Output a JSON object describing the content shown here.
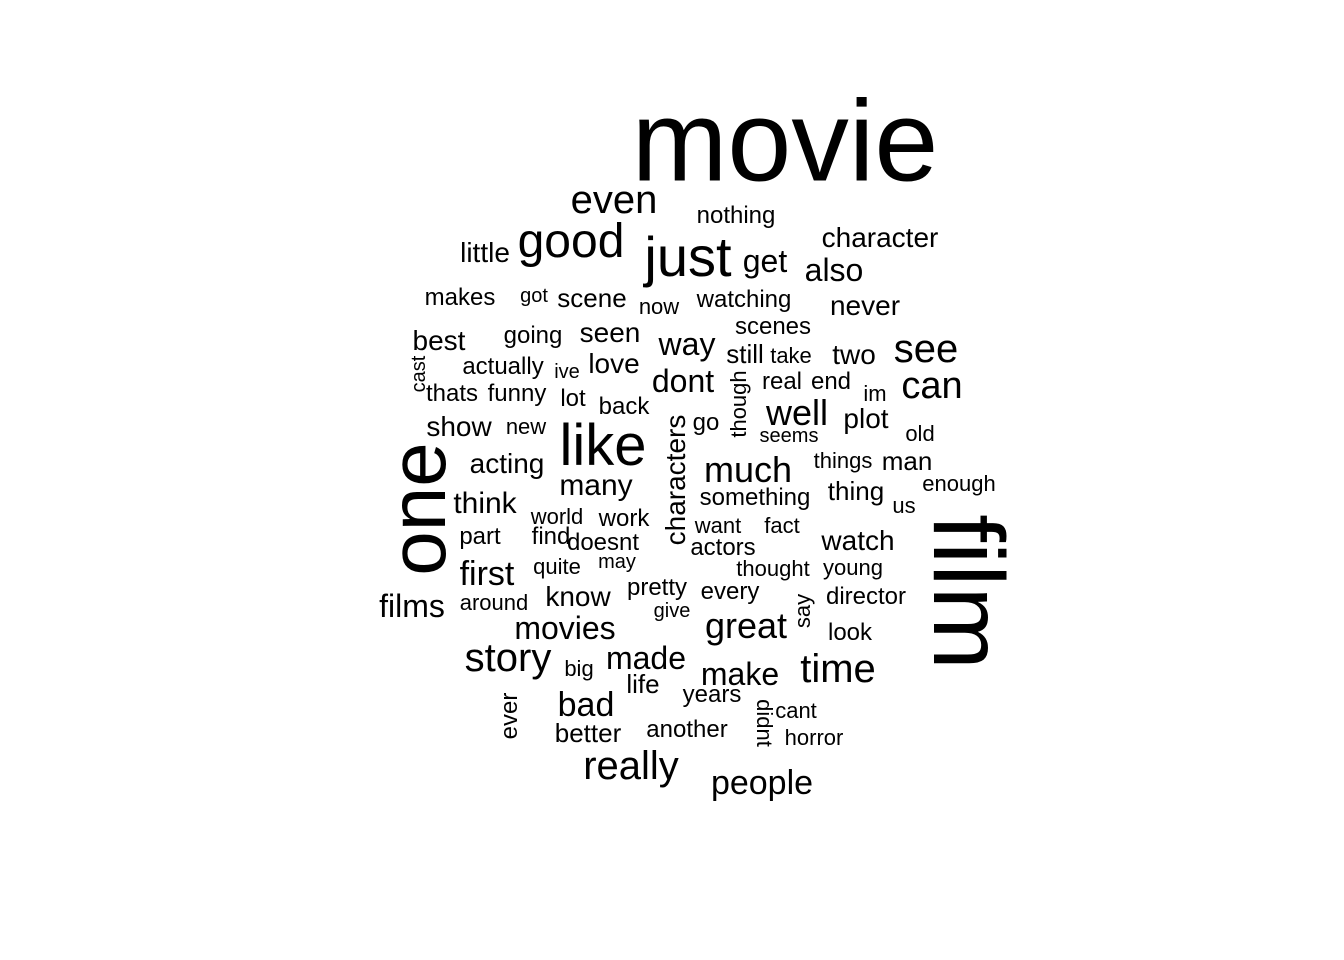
{
  "words": [
    {
      "text": "movie",
      "rot": 0
    },
    {
      "text": "film",
      "rot": 90
    },
    {
      "text": "one",
      "rot": -90
    },
    {
      "text": "like",
      "rot": 0
    },
    {
      "text": "just",
      "rot": 0
    },
    {
      "text": "good",
      "rot": 0
    },
    {
      "text": "even",
      "rot": 0
    },
    {
      "text": "really",
      "rot": 0
    },
    {
      "text": "story",
      "rot": 0
    },
    {
      "text": "time",
      "rot": 0
    },
    {
      "text": "see",
      "rot": 0
    },
    {
      "text": "can",
      "rot": 0
    },
    {
      "text": "much",
      "rot": 0
    },
    {
      "text": "well",
      "rot": 0
    },
    {
      "text": "get",
      "rot": 0
    },
    {
      "text": "also",
      "rot": 0
    },
    {
      "text": "great",
      "rot": 0
    },
    {
      "text": "characters",
      "rot": -90
    },
    {
      "text": "made",
      "rot": 0
    },
    {
      "text": "make",
      "rot": 0
    },
    {
      "text": "bad",
      "rot": 0
    },
    {
      "text": "people",
      "rot": 0
    },
    {
      "text": "movies",
      "rot": 0
    },
    {
      "text": "first",
      "rot": 0
    },
    {
      "text": "dont",
      "rot": 0
    },
    {
      "text": "way",
      "rot": 0
    },
    {
      "text": "films",
      "rot": 0
    },
    {
      "text": "think",
      "rot": 0
    },
    {
      "text": "many",
      "rot": 0
    },
    {
      "text": "seen",
      "rot": 0
    },
    {
      "text": "never",
      "rot": 0
    },
    {
      "text": "character",
      "rot": 0
    },
    {
      "text": "watch",
      "rot": 0
    },
    {
      "text": "acting",
      "rot": 0
    },
    {
      "text": "plot",
      "rot": 0
    },
    {
      "text": "love",
      "rot": 0
    },
    {
      "text": "know",
      "rot": 0
    },
    {
      "text": "two",
      "rot": 0
    },
    {
      "text": "best",
      "rot": 0
    },
    {
      "text": "show",
      "rot": 0
    },
    {
      "text": "little",
      "rot": 0
    },
    {
      "text": "scene",
      "rot": 0
    },
    {
      "text": "watching",
      "rot": 0
    },
    {
      "text": "scenes",
      "rot": 0
    },
    {
      "text": "still",
      "rot": 0
    },
    {
      "text": "something",
      "rot": 0
    },
    {
      "text": "nothing",
      "rot": 0
    },
    {
      "text": "makes",
      "rot": 0
    },
    {
      "text": "going",
      "rot": 0
    },
    {
      "text": "actually",
      "rot": 0
    },
    {
      "text": "funny",
      "rot": 0
    },
    {
      "text": "better",
      "rot": 0
    },
    {
      "text": "another",
      "rot": 0
    },
    {
      "text": "life",
      "rot": 0
    },
    {
      "text": "years",
      "rot": 0
    },
    {
      "text": "end",
      "rot": 0
    },
    {
      "text": "real",
      "rot": 0
    },
    {
      "text": "man",
      "rot": 0
    },
    {
      "text": "thing",
      "rot": 0
    },
    {
      "text": "doesnt",
      "rot": 0
    },
    {
      "text": "work",
      "rot": 0
    },
    {
      "text": "find",
      "rot": 0
    },
    {
      "text": "part",
      "rot": 0
    },
    {
      "text": "actors",
      "rot": 0
    },
    {
      "text": "back",
      "rot": 0
    },
    {
      "text": "lot",
      "rot": 0
    },
    {
      "text": "thats",
      "rot": 0
    },
    {
      "text": "pretty",
      "rot": 0
    },
    {
      "text": "every",
      "rot": 0
    },
    {
      "text": "director",
      "rot": 0
    },
    {
      "text": "look",
      "rot": 0
    },
    {
      "text": "thought",
      "rot": 0
    },
    {
      "text": "young",
      "rot": 0
    },
    {
      "text": "ever",
      "rot": -90
    },
    {
      "text": "didnt",
      "rot": 90
    },
    {
      "text": "cant",
      "rot": 0
    },
    {
      "text": "horror",
      "rot": 0
    },
    {
      "text": "quite",
      "rot": 0
    },
    {
      "text": "around",
      "rot": 0
    },
    {
      "text": "world",
      "rot": 0
    },
    {
      "text": "new",
      "rot": 0
    },
    {
      "text": "go",
      "rot": 0
    },
    {
      "text": "though",
      "rot": -90
    },
    {
      "text": "seems",
      "rot": 0
    },
    {
      "text": "things",
      "rot": 0
    },
    {
      "text": "enough",
      "rot": 0
    },
    {
      "text": "old",
      "rot": 0
    },
    {
      "text": "im",
      "rot": 0
    },
    {
      "text": "take",
      "rot": 0
    },
    {
      "text": "got",
      "rot": 0
    },
    {
      "text": "now",
      "rot": 0
    },
    {
      "text": "ive",
      "rot": 0
    },
    {
      "text": "cast",
      "rot": -90
    },
    {
      "text": "want",
      "rot": 0
    },
    {
      "text": "fact",
      "rot": 0
    },
    {
      "text": "may",
      "rot": 0
    },
    {
      "text": "give",
      "rot": 0
    },
    {
      "text": "big",
      "rot": 0
    },
    {
      "text": "say",
      "rot": -90
    },
    {
      "text": "us",
      "rot": 0
    }
  ]
}
